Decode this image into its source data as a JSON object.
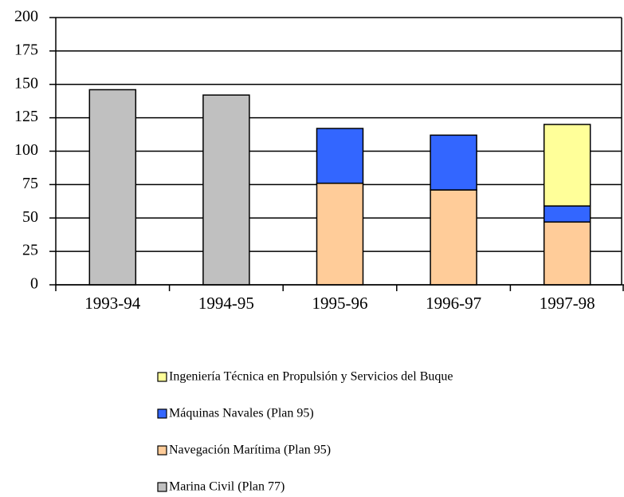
{
  "chart_data": {
    "type": "stacked_bar",
    "categories": [
      "1993-94",
      "1994-95",
      "1995-96",
      "1996-97",
      "1997-98"
    ],
    "series": [
      {
        "name": "Marina Civil (Plan 77)",
        "color": "#c0c0c0",
        "values": [
          146,
          142,
          null,
          null,
          null
        ]
      },
      {
        "name": "Navegación Marítima (Plan 95)",
        "color": "#ffcc99",
        "values": [
          null,
          null,
          76,
          71,
          47
        ]
      },
      {
        "name": "Máquinas Navales (Plan 95)",
        "color": "#3366ff",
        "values": [
          null,
          null,
          41,
          41,
          12
        ]
      },
      {
        "name": "Ingeniería Técnica en Propulsión y Servicios del Buque",
        "color": "#ffff99",
        "values": [
          null,
          null,
          null,
          null,
          61
        ]
      }
    ],
    "ylim": [
      0,
      200
    ],
    "yticks": [
      0,
      25,
      50,
      75,
      100,
      125,
      150,
      175,
      200
    ],
    "grid": true,
    "legend": "bottom"
  }
}
